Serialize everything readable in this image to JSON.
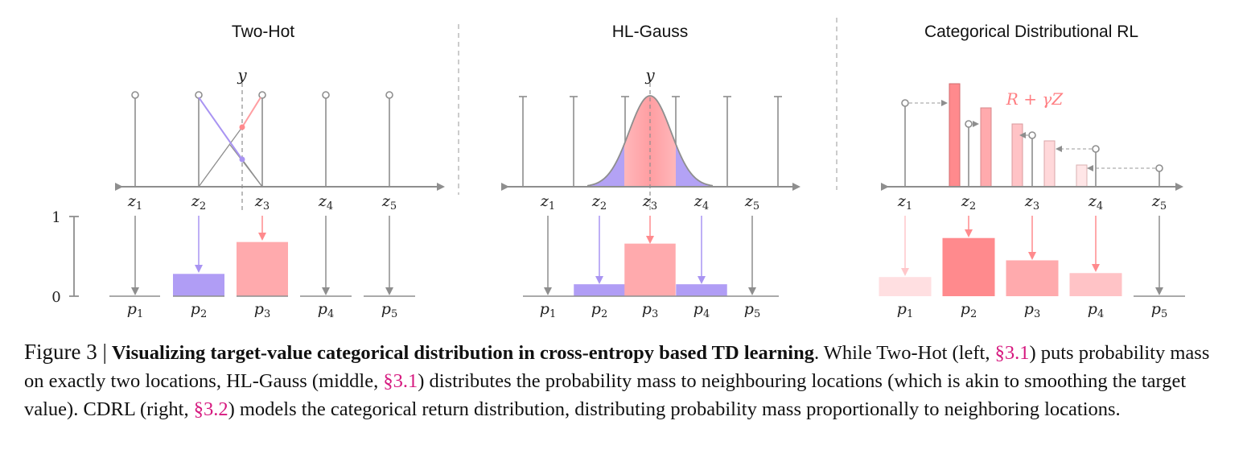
{
  "panels": [
    {
      "title": "Two-Hot",
      "target_label": "y",
      "atoms": [
        "z1",
        "z2",
        "z3",
        "z4",
        "z5"
      ],
      "probs": [
        "p1",
        "p2",
        "p3",
        "p4",
        "p5"
      ],
      "masses": [
        0,
        0.28,
        0.68,
        0,
        0
      ]
    },
    {
      "title": "HL-Gauss",
      "target_label": "y",
      "atoms": [
        "z1",
        "z2",
        "z3",
        "z4",
        "z5"
      ],
      "probs": [
        "p1",
        "p2",
        "p3",
        "p4",
        "p5"
      ],
      "masses": [
        0,
        0.15,
        0.66,
        0.15,
        0
      ]
    },
    {
      "title": "Categorical Distributional RL",
      "target_label": "R + γZ",
      "atoms": [
        "z1",
        "z2",
        "z3",
        "z4",
        "z5"
      ],
      "probs": [
        "p1",
        "p2",
        "p3",
        "p4",
        "p5"
      ],
      "masses": [
        0.24,
        0.73,
        0.45,
        0.29,
        0
      ]
    }
  ],
  "y_axis": {
    "tick_high": "1",
    "tick_low": "0"
  },
  "colors": {
    "purple": "#b09df5",
    "pink": "#ffaaad",
    "pink_dark": "#ff8a8d",
    "pink_light": "#ffdfe1",
    "gray": "#8e8e8e"
  },
  "caption": {
    "fig_label": "Figure 3 |",
    "bold_title": "Visualizing target-value categorical distribution in cross-entropy based TD learning",
    "t1": ". While Two-Hot (left, ",
    "r1": "§3.1",
    "t2": ") puts probability mass on exactly two locations, HL-Gauss (middle, ",
    "r2": "§3.1",
    "t3": ") distributes the probability mass to neighbouring locations (which is akin to smoothing the target value). CDRL (right, ",
    "r3": "§3.2",
    "t4": ") models the categorical return distribution, distributing probability mass proportionally to neighboring locations."
  }
}
